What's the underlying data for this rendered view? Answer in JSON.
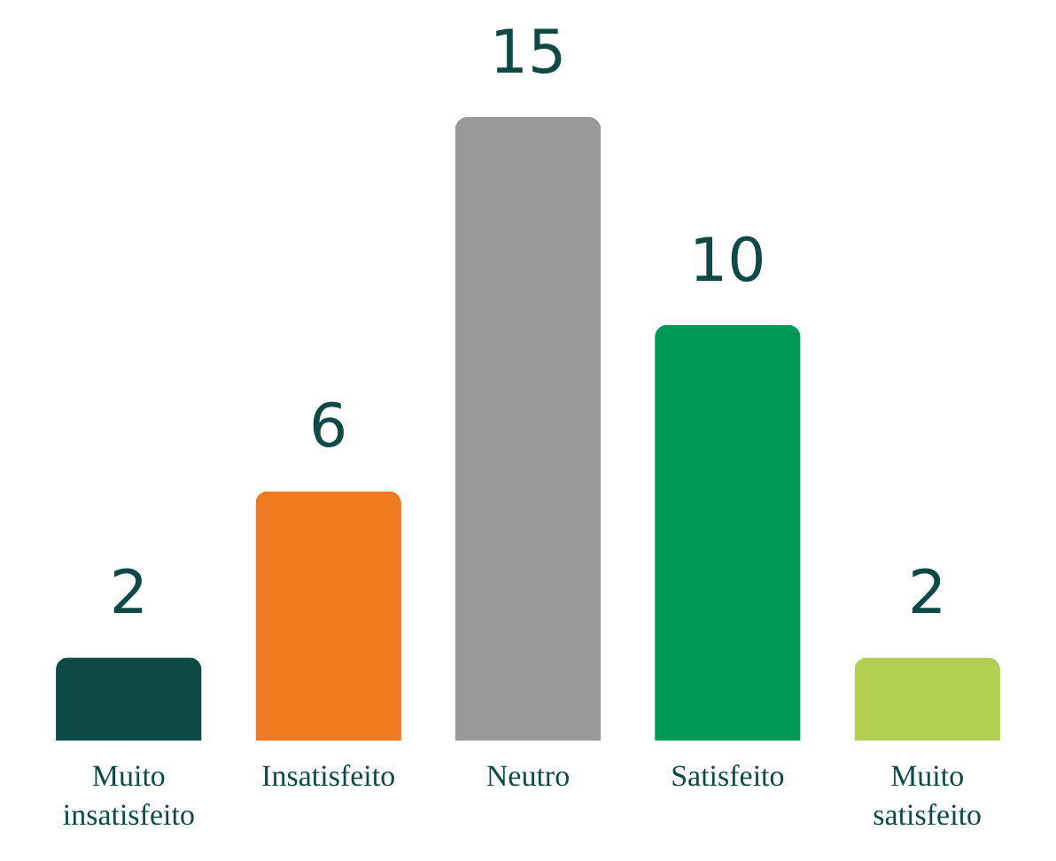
{
  "chart_data": {
    "type": "bar",
    "categories": [
      "Muito insatisfeito",
      "Insatisfeito",
      "Neutro",
      "Satisfeito",
      "Muito satisfeito"
    ],
    "values": [
      2,
      6,
      15,
      10,
      2
    ],
    "colors": [
      "#0d4a45",
      "#f07a1f",
      "#999999",
      "#009a56",
      "#b2cf52"
    ],
    "data_labels": true
  }
}
